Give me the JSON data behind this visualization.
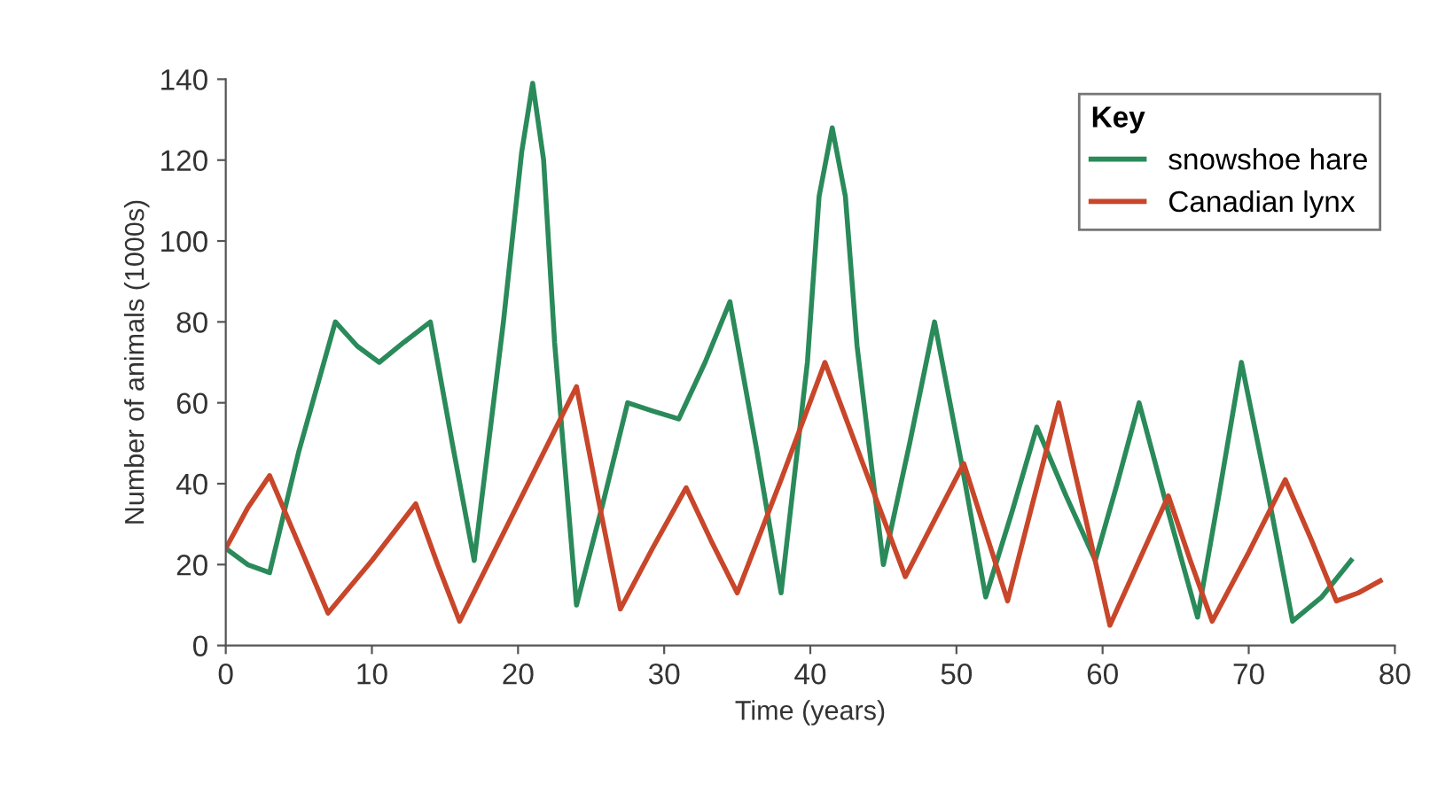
{
  "chart_data": {
    "type": "line",
    "xlabel": "Time (years)",
    "ylabel": "Number of animals (1000s)",
    "legend_title": "Key",
    "legend": "top right",
    "grid": false,
    "marker": "none",
    "line_style": "solid",
    "xlim": [
      0,
      80
    ],
    "ylim": [
      0,
      140
    ],
    "xticks": [
      0,
      10,
      20,
      30,
      40,
      50,
      60,
      70,
      80
    ],
    "yticks": [
      0,
      20,
      40,
      60,
      80,
      100,
      120,
      140
    ],
    "series": [
      {
        "name": "snowshoe hare",
        "color": "#2a8a5a",
        "x": [
          0,
          1.5,
          3,
          5,
          7.5,
          9,
          10.5,
          12.2,
          14,
          15.5,
          17,
          19,
          20.25,
          21,
          21.75,
          22.5,
          24,
          25.8,
          27.5,
          29.2,
          31,
          32.8,
          34.5,
          36.3,
          38,
          39.8,
          40.6,
          41.5,
          42.4,
          43.2,
          45,
          46.8,
          48.5,
          50.3,
          52,
          53.8,
          55.5,
          57.5,
          59.5,
          61,
          62.5,
          64.5,
          66.5,
          68,
          69.5,
          71.3,
          73,
          75,
          77
        ],
        "values": [
          24,
          20,
          18,
          48,
          80,
          74,
          70,
          75,
          80,
          50,
          21,
          80,
          122,
          139,
          120,
          75,
          10,
          35,
          60,
          58,
          56,
          70,
          85,
          49,
          13,
          70,
          111,
          128,
          111,
          74,
          20,
          50,
          80,
          46,
          12,
          33,
          54,
          37,
          21,
          40,
          60,
          33,
          7,
          38,
          70,
          38,
          6,
          12,
          21
        ]
      },
      {
        "name": "Canadian lynx",
        "color": "#c8462a",
        "x": [
          0,
          1.5,
          3,
          5,
          7,
          10,
          13,
          14.5,
          16,
          20,
          24,
          25.5,
          27,
          29.2,
          31.5,
          33.2,
          35,
          38,
          41,
          43.8,
          46.5,
          48.5,
          50.5,
          52,
          53.5,
          55.2,
          57,
          58.8,
          60.5,
          62.5,
          64.5,
          66,
          67.5,
          70,
          72.5,
          74.3,
          76,
          77.5,
          79
        ],
        "values": [
          24,
          34,
          42,
          25,
          8,
          21,
          35,
          20,
          6,
          35,
          64,
          36,
          9,
          24,
          39,
          26,
          13,
          41,
          70,
          43,
          17,
          31,
          45,
          28,
          11,
          35,
          60,
          32,
          5,
          21,
          37,
          21,
          6,
          23,
          41,
          26,
          11,
          13,
          16
        ]
      }
    ]
  }
}
